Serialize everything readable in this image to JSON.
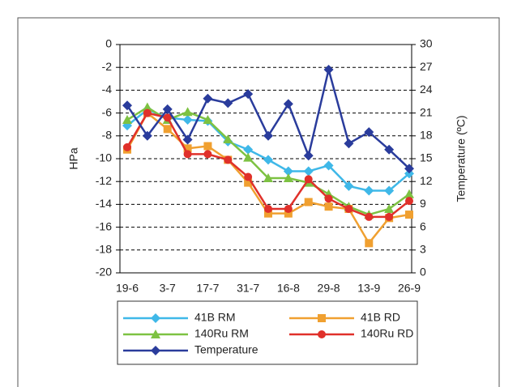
{
  "chart_data": {
    "type": "line",
    "categories": [
      "19-6",
      null,
      "3-7",
      null,
      "17-7",
      null,
      "31-7",
      null,
      "16-8",
      null,
      "29-8",
      null,
      "13-9",
      null,
      "26-9"
    ],
    "y_label": "HPa",
    "y2_label": "Temperature (ºC)",
    "ylim": [
      -20,
      0
    ],
    "yticks": [
      -20,
      -18,
      -16,
      -14,
      -12,
      -10,
      -8,
      -6,
      -4,
      -2,
      0
    ],
    "y2lim": [
      0,
      30
    ],
    "y2ticks": [
      0,
      3,
      6,
      9,
      12,
      15,
      18,
      21,
      24,
      27,
      30
    ],
    "grid": true,
    "legend": "bottom",
    "series": [
      {
        "name": "41B RM",
        "color": "#3fb8e8",
        "marker": "diamond",
        "values": [
          -7.1,
          -5.7,
          -6.4,
          -6.6,
          -6.7,
          -8.5,
          -9.2,
          -10.1,
          -11.1,
          -11.1,
          -10.6,
          -12.4,
          -12.8,
          -12.8,
          -11.3
        ]
      },
      {
        "name": "41B RD",
        "color": "#f0a030",
        "marker": "square",
        "values": [
          -9.2,
          -6.0,
          -7.4,
          -9.1,
          -8.9,
          -10.1,
          -12.1,
          -14.8,
          -14.8,
          -13.8,
          -14.2,
          -14.4,
          -17.4,
          -15.2,
          -14.9
        ]
      },
      {
        "name": "140Ru RM",
        "color": "#7dc242",
        "marker": "triangle",
        "values": [
          -6.6,
          -5.5,
          -6.6,
          -5.9,
          -6.6,
          -8.3,
          -9.9,
          -11.7,
          -11.7,
          -12.1,
          -13.1,
          -14.2,
          -14.9,
          -14.4,
          -13.1
        ]
      },
      {
        "name": "140Ru RD",
        "color": "#e0302a",
        "marker": "circle",
        "values": [
          -9.0,
          -6.0,
          -6.4,
          -9.6,
          -9.6,
          -10.1,
          -11.6,
          -14.4,
          -14.4,
          -11.8,
          -13.5,
          -14.4,
          -15.1,
          -15.1,
          -13.7
        ]
      },
      {
        "name": "Temperature",
        "color": "#2a3c9c",
        "marker": "diamond",
        "axis": "y2",
        "values": [
          22.0,
          18.0,
          21.5,
          17.5,
          22.9,
          22.3,
          23.5,
          18.0,
          22.2,
          15.4,
          26.7,
          17.0,
          18.5,
          16.2,
          13.7
        ]
      }
    ]
  }
}
